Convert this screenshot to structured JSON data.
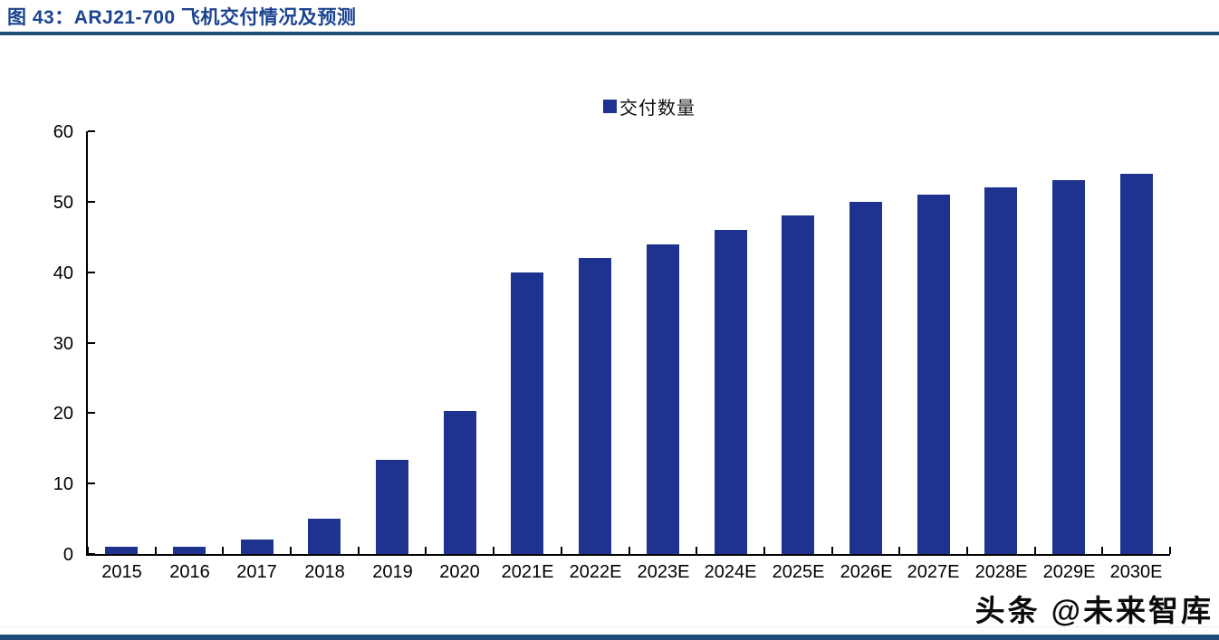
{
  "header": {
    "title": "图 43：ARJ21-700 飞机交付情况及预测"
  },
  "watermark": {
    "text": "头条 @未来智库"
  },
  "colors": {
    "title": "#1b4390",
    "rule": "#1f4e79",
    "bar": "#1e338f",
    "axis": "#000000"
  },
  "chart_data": {
    "type": "bar",
    "title": "图 43：ARJ21-700 飞机交付情况及预测",
    "legend": "交付数量",
    "legend_position": "top-center",
    "categories": [
      "2015",
      "2016",
      "2017",
      "2018",
      "2019",
      "2020",
      "2021E",
      "2022E",
      "2023E",
      "2024E",
      "2025E",
      "2026E",
      "2027E",
      "2028E",
      "2029E",
      "2030E"
    ],
    "values": [
      1,
      1,
      2,
      5,
      13.3,
      20.3,
      40,
      42,
      44,
      46,
      48,
      50,
      51,
      52,
      53,
      54
    ],
    "xlabel": "",
    "ylabel": "",
    "ylim": [
      0,
      60
    ],
    "yticks": [
      0,
      10,
      20,
      30,
      40,
      50,
      60
    ],
    "grid": false,
    "bar_color": "#1e338f"
  }
}
